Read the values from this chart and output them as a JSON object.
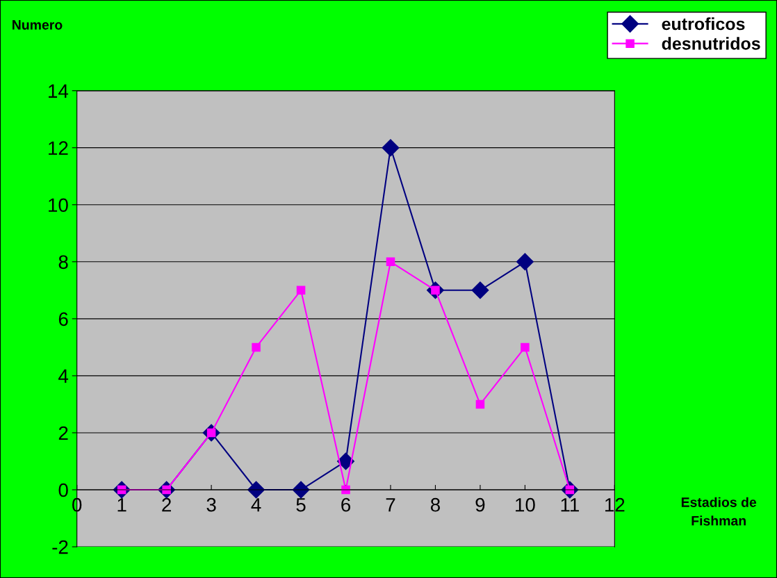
{
  "chart_data": {
    "type": "line",
    "ylabel": "Numero",
    "xlabel": "Estadios de\nFishman",
    "x": [
      1,
      2,
      3,
      4,
      5,
      6,
      7,
      8,
      9,
      10,
      11
    ],
    "series": [
      {
        "name": "eutroficos",
        "color": "#000080",
        "marker": "diamond",
        "values": [
          0,
          0,
          2,
          0,
          0,
          1,
          12,
          7,
          7,
          8,
          0
        ]
      },
      {
        "name": "desnutridos",
        "color": "#ff00ff",
        "marker": "square",
        "values": [
          0,
          0,
          2,
          5,
          7,
          0,
          8,
          7,
          3,
          5,
          0
        ]
      }
    ],
    "xlim": [
      0,
      12
    ],
    "xticks": [
      0,
      1,
      2,
      3,
      4,
      5,
      6,
      7,
      8,
      9,
      10,
      11,
      12
    ],
    "ylim": [
      -2,
      14
    ],
    "yticks": [
      -2,
      0,
      2,
      4,
      6,
      8,
      10,
      12,
      14
    ],
    "grid": "y",
    "legend": "top right",
    "line_style": "solid"
  }
}
